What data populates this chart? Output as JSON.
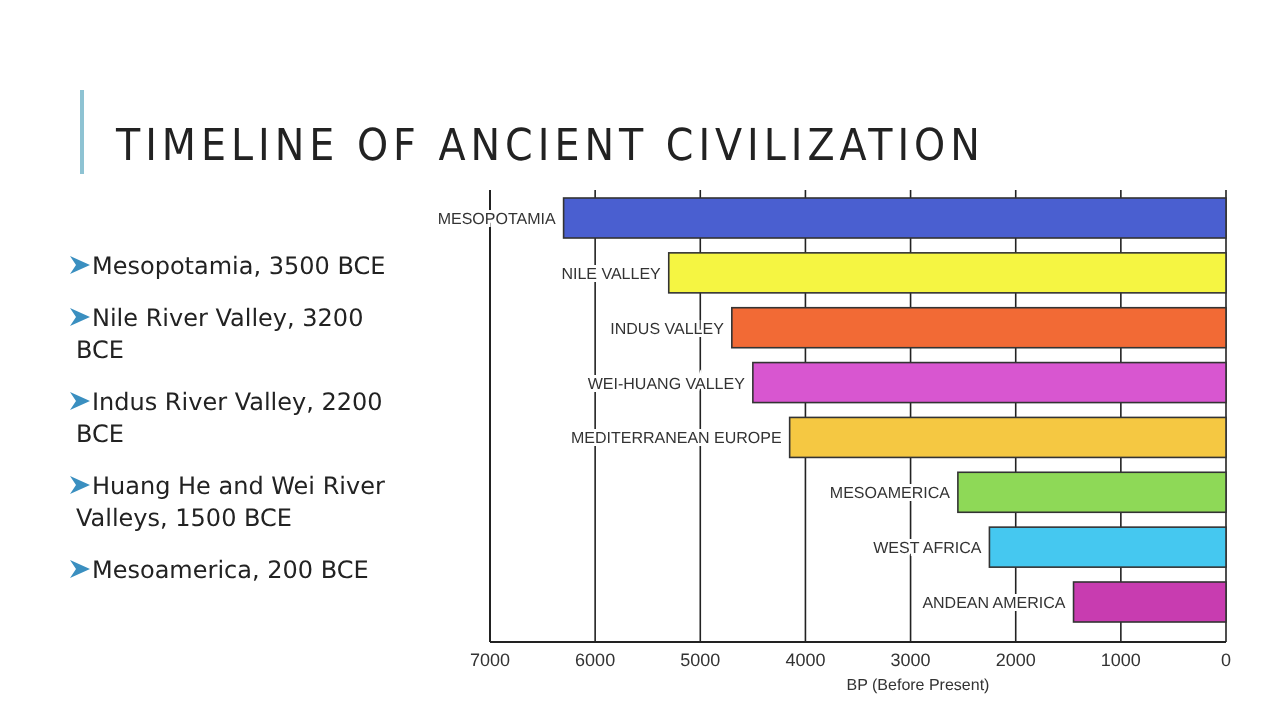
{
  "chart_data": {
    "type": "bar",
    "orientation": "horizontal",
    "title": "TIMELINE OF ANCIENT CIVILIZATION",
    "xlabel": "BP (Before Present)",
    "categories": [
      "MESOPOTAMIA",
      "NILE VALLEY",
      "INDUS VALLEY",
      "WEI-HUANG VALLEY",
      "MEDITERRANEAN EUROPE",
      "MESOAMERICA",
      "WEST AFRICA",
      "ANDEAN AMERICA"
    ],
    "values": [
      6300,
      5300,
      4700,
      4500,
      4150,
      2550,
      2250,
      1450
    ],
    "colors": [
      "#4a5fd0",
      "#f5f542",
      "#f26a35",
      "#d856d0",
      "#f5c842",
      "#8ed957",
      "#45c8f0",
      "#c83cb0"
    ],
    "xlim": [
      7000,
      0
    ],
    "xticks": [
      7000,
      6000,
      5000,
      4000,
      3000,
      2000,
      1000,
      0
    ],
    "grid": "x",
    "annotations": [
      "Mesopotamia, 3500 BCE",
      "Nile River Valley, 3200 BCE",
      "Indus River Valley, 2200 BCE",
      "Huang He and Wei River Valleys, 1500 BCE",
      "Mesoamerica, 200 BCE"
    ]
  }
}
